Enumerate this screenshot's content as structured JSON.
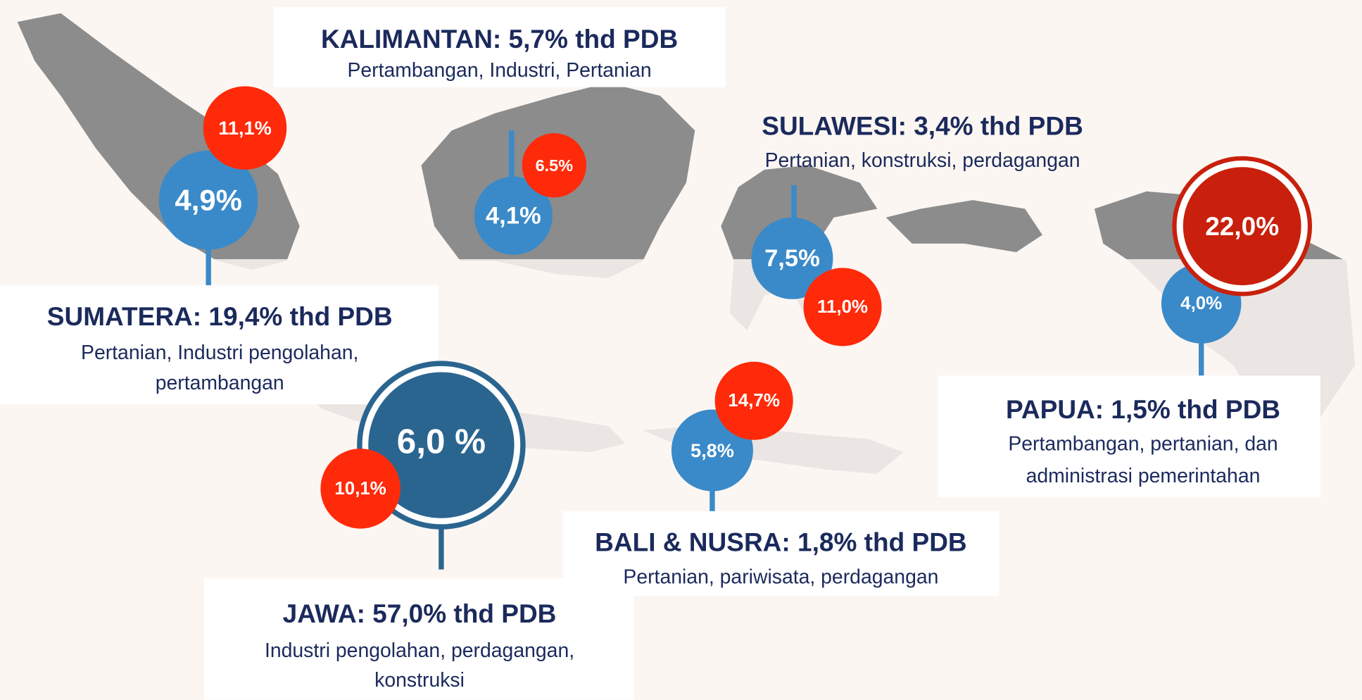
{
  "regions": [
    {
      "title": "SUMATERA: 19,4% thd PDB",
      "sectors": [
        "Pertanian, Industri pengolahan,",
        "pertambangan"
      ],
      "growth": "4,9%",
      "poverty": "11,1%"
    },
    {
      "title": "KALIMANTAN: 5,7% thd PDB",
      "sectors": [
        "Pertambangan, Industri, Pertanian"
      ],
      "growth": "4,1%",
      "poverty": "6.5%"
    },
    {
      "title": "SULAWESI: 3,4% thd PDB",
      "sectors": [
        "Pertanian, konstruksi, perdagangan"
      ],
      "growth": "7,5%",
      "poverty": "11,0%"
    },
    {
      "title": "PAPUA: 1,5% thd PDB",
      "sectors": [
        "Pertambangan, pertanian, dan",
        "administrasi pemerintahan"
      ],
      "growth": "4,0%",
      "poverty": "22,0%"
    },
    {
      "title": "BALI & NUSRA: 1,8% thd PDB",
      "sectors": [
        "Pertanian, pariwisata, perdagangan"
      ],
      "growth": "5,8%",
      "poverty": "14,7%"
    },
    {
      "title": "JAWA: 57,0% thd PDB",
      "sectors": [
        "Industri pengolahan, perdagangan,",
        "konstruksi"
      ],
      "growth": "6,0 %",
      "poverty": "10,1%"
    }
  ]
}
